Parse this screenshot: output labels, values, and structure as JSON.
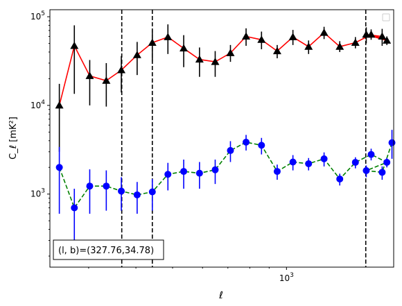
{
  "chart_data": {
    "type": "scatter",
    "xlabel": "ℓ",
    "ylabel": "C_ℓ  [mK²]",
    "xscale": "log",
    "yscale": "log",
    "xlim": [
      237,
      1920
    ],
    "ylim": [
      150,
      120000
    ],
    "x_tick_labels": [
      {
        "value": 1000,
        "base": "10",
        "exp": "3"
      }
    ],
    "y_tick_labels": [
      {
        "value": 1000,
        "base": "10",
        "exp": "3"
      },
      {
        "value": 10000,
        "base": "10",
        "exp": "4"
      },
      {
        "value": 100000,
        "base": "10",
        "exp": "5"
      }
    ],
    "annotation": "(l, b)=(327.76,34.78)",
    "legend": {
      "placement": "top-right",
      "entries": []
    },
    "vlines": [
      367,
      442,
      1620
    ],
    "series": [
      {
        "marker": "triangle",
        "marker_color": "#000000",
        "line_color": "#ff0000",
        "line_style": "solid",
        "points": [
          {
            "x": 251,
            "y": 10000,
            "lo": 3000,
            "hi": 17500
          },
          {
            "x": 275,
            "y": 47000,
            "lo": 13500,
            "hi": 80000
          },
          {
            "x": 302,
            "y": 21500,
            "lo": 10000,
            "hi": 32500
          },
          {
            "x": 334,
            "y": 19000,
            "lo": 9700,
            "hi": 30000
          },
          {
            "x": 366,
            "y": 25000,
            "lo": 14000,
            "hi": 36000
          },
          {
            "x": 403,
            "y": 37000,
            "lo": 22000,
            "hi": 52000
          },
          {
            "x": 442,
            "y": 51000,
            "lo": 31000,
            "hi": 72000
          },
          {
            "x": 486,
            "y": 59000,
            "lo": 38000,
            "hi": 82000
          },
          {
            "x": 535,
            "y": 44000,
            "lo": 27000,
            "hi": 62000
          },
          {
            "x": 589,
            "y": 33000,
            "lo": 21000,
            "hi": 45000
          },
          {
            "x": 648,
            "y": 31000,
            "lo": 21000,
            "hi": 41000
          },
          {
            "x": 711,
            "y": 39000,
            "lo": 31000,
            "hi": 48000
          },
          {
            "x": 782,
            "y": 60000,
            "lo": 47000,
            "hi": 74000
          },
          {
            "x": 859,
            "y": 55000,
            "lo": 43000,
            "hi": 68000
          },
          {
            "x": 945,
            "y": 41000,
            "lo": 34000,
            "hi": 48000
          },
          {
            "x": 1040,
            "y": 59000,
            "lo": 48000,
            "hi": 71000
          },
          {
            "x": 1144,
            "y": 46000,
            "lo": 38000,
            "hi": 54000
          },
          {
            "x": 1257,
            "y": 66000,
            "lo": 56000,
            "hi": 77000
          },
          {
            "x": 1383,
            "y": 46000,
            "lo": 40000,
            "hi": 53000
          },
          {
            "x": 1521,
            "y": 51000,
            "lo": 44000,
            "hi": 59000
          },
          {
            "x": 1674,
            "y": 63000,
            "lo": 55000,
            "hi": 72000
          },
          {
            "x": 1842,
            "y": 54000,
            "lo": 48000,
            "hi": 60000
          },
          {
            "x": 1625,
            "y": 63000,
            "lo": 50000,
            "hi": 76000
          },
          {
            "x": 1790,
            "y": 60000,
            "lo": 47000,
            "hi": 73000
          }
        ]
      },
      {
        "marker": "circle",
        "marker_color": "#0000ff",
        "line_color": "#008000",
        "line_style": "dashed",
        "points": [
          {
            "x": 251,
            "y": 2000,
            "lo": 600,
            "hi": 3400
          },
          {
            "x": 275,
            "y": 700,
            "lo": 250,
            "hi": 1150
          },
          {
            "x": 302,
            "y": 1230,
            "lo": 600,
            "hi": 1900
          },
          {
            "x": 334,
            "y": 1230,
            "lo": 650,
            "hi": 1850
          },
          {
            "x": 366,
            "y": 1080,
            "lo": 650,
            "hi": 1550
          },
          {
            "x": 403,
            "y": 980,
            "lo": 600,
            "hi": 1370
          },
          {
            "x": 442,
            "y": 1060,
            "lo": 650,
            "hi": 1480
          },
          {
            "x": 486,
            "y": 1670,
            "lo": 1100,
            "hi": 2250
          },
          {
            "x": 535,
            "y": 1800,
            "lo": 1150,
            "hi": 2450
          },
          {
            "x": 589,
            "y": 1720,
            "lo": 1150,
            "hi": 2300
          },
          {
            "x": 648,
            "y": 1880,
            "lo": 1300,
            "hi": 2450
          },
          {
            "x": 711,
            "y": 3100,
            "lo": 2300,
            "hi": 3950
          },
          {
            "x": 782,
            "y": 3850,
            "lo": 3100,
            "hi": 4650
          },
          {
            "x": 859,
            "y": 3550,
            "lo": 2800,
            "hi": 4300
          },
          {
            "x": 945,
            "y": 1800,
            "lo": 1450,
            "hi": 2150
          },
          {
            "x": 1040,
            "y": 2300,
            "lo": 1850,
            "hi": 2750
          },
          {
            "x": 1144,
            "y": 2200,
            "lo": 1850,
            "hi": 2550
          },
          {
            "x": 1257,
            "y": 2500,
            "lo": 2050,
            "hi": 2950
          },
          {
            "x": 1383,
            "y": 1480,
            "lo": 1250,
            "hi": 1700
          },
          {
            "x": 1521,
            "y": 2280,
            "lo": 1950,
            "hi": 2600
          },
          {
            "x": 1674,
            "y": 2800,
            "lo": 2400,
            "hi": 3250
          },
          {
            "x": 1842,
            "y": 2280,
            "lo": 2000,
            "hi": 2550
          },
          {
            "x": 1625,
            "y": 1840,
            "lo": 1550,
            "hi": 2100
          },
          {
            "x": 1790,
            "y": 1760,
            "lo": 1450,
            "hi": 2050
          },
          {
            "x": 1900,
            "y": 3800,
            "lo": 2500,
            "hi": 5300
          }
        ]
      }
    ]
  }
}
